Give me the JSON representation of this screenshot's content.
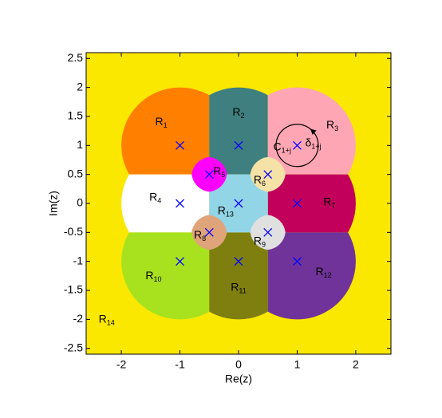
{
  "chart_data": {
    "type": "region",
    "xlabel": "Re(z)",
    "ylabel": "Im(z)",
    "xlim": [
      -2.6,
      2.6
    ],
    "ylim": [
      -2.6,
      2.6
    ],
    "xticks": [
      -2,
      -1,
      0,
      1,
      2
    ],
    "yticks": [
      -2.5,
      -2,
      -1.5,
      -1,
      -0.5,
      0,
      0.5,
      1,
      1.5,
      2,
      2.5
    ],
    "points": {
      "color": "#0000ff",
      "marker": "x",
      "x": [
        -1,
        0,
        1,
        -1,
        -0.5,
        0.5,
        1,
        -0.5,
        0.5,
        -1,
        0,
        1,
        0
      ],
      "values": [
        1,
        1,
        1,
        0,
        0.5,
        0.5,
        0,
        -0.5,
        -0.5,
        -1,
        -1,
        -1,
        0
      ]
    },
    "regions": [
      {
        "name": "R",
        "subscript": "1",
        "color": "#ff8000"
      },
      {
        "name": "R",
        "subscript": "2",
        "color": "#3f7f7f"
      },
      {
        "name": "R",
        "subscript": "3",
        "color": "#ffa6b4"
      },
      {
        "name": "R",
        "subscript": "4",
        "color": "#ffffff"
      },
      {
        "name": "R",
        "subscript": "5",
        "color": "#ff00ff"
      },
      {
        "name": "R",
        "subscript": "6",
        "color": "#f5e2a6"
      },
      {
        "name": "R",
        "subscript": "7",
        "color": "#c2005c"
      },
      {
        "name": "R",
        "subscript": "8",
        "color": "#dfa47a"
      },
      {
        "name": "R",
        "subscript": "9",
        "color": "#e0e0e0"
      },
      {
        "name": "R",
        "subscript": "10",
        "color": "#a8e21f"
      },
      {
        "name": "R",
        "subscript": "11",
        "color": "#7f7f10"
      },
      {
        "name": "R",
        "subscript": "12",
        "color": "#703399"
      },
      {
        "name": "R",
        "subscript": "13",
        "color": "#92d5e6"
      },
      {
        "name": "R",
        "subscript": "14",
        "color": "#fbe800"
      }
    ],
    "annotations": [
      {
        "text": "C",
        "subscript": "1+j"
      },
      {
        "text": "δ",
        "subscript": "1+j"
      }
    ]
  }
}
